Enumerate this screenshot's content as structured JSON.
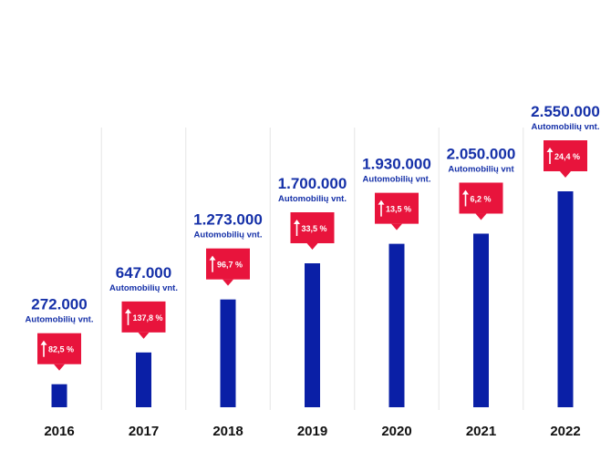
{
  "chart_data": {
    "type": "bar",
    "categories": [
      "2016",
      "2017",
      "2018",
      "2019",
      "2020",
      "2021",
      "2022"
    ],
    "values": [
      272000,
      647000,
      1273000,
      1700000,
      1930000,
      2050000,
      2550000
    ],
    "value_labels": [
      "272.000",
      "647.000",
      "1.273.000",
      "1.700.000",
      "1.930.000",
      "2.050.000",
      "2.550.000"
    ],
    "unit_labels": [
      "Automobilių vnt.",
      "Automobilių vnt.",
      "Automobilių vnt.",
      "Automobilių vnt.",
      "Automobilių vnt.",
      "Automobilių vnt",
      "Automobilių vnt."
    ],
    "growth_labels": [
      "82,5 %",
      "137,8 %",
      "96,7 %",
      "33,5 %",
      "13,5 %",
      "6,2 %",
      "24,4 %"
    ],
    "colors": {
      "bar": "#0a1fa6",
      "badge": "#e8143c",
      "value_text": "#1530a8",
      "divider": "#e6e6e6"
    },
    "grid": false,
    "legend": "none"
  }
}
